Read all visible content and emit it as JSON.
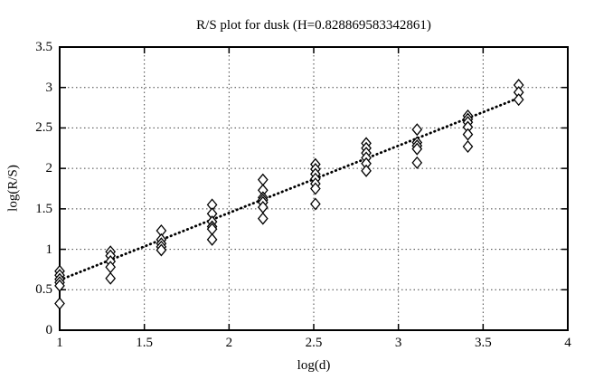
{
  "colors": {
    "background": "#ffffff",
    "foreground": "#000000",
    "grid": "#444444"
  },
  "chart_data": {
    "type": "scatter",
    "title": "R/S plot for dusk (H=0.828869583342861)",
    "xlabel": "log(d)",
    "ylabel": "log(R/S)",
    "hurst_exponent": "0.828869583342861",
    "xlim": [
      1,
      4
    ],
    "ylim": [
      0,
      3.5
    ],
    "xticks": [
      1,
      1.5,
      2,
      2.5,
      3,
      3.5,
      4
    ],
    "yticks": [
      0,
      0.5,
      1,
      1.5,
      2,
      2.5,
      3,
      3.5
    ],
    "xtick_labels": [
      "1",
      "1.5",
      "2",
      "2.5",
      "3",
      "3.5",
      "4"
    ],
    "ytick_labels": [
      "0",
      "0.5",
      "1",
      "1.5",
      "2",
      "2.5",
      "3",
      "3.5"
    ],
    "grid": "dotted",
    "legend": "none",
    "marker": "open-diamond",
    "series": [
      {
        "name": "rescaled-range-points",
        "groups": [
          {
            "x": 1.0,
            "ys": [
              0.73,
              0.68,
              0.63,
              0.59,
              0.55,
              0.33
            ]
          },
          {
            "x": 1.3,
            "ys": [
              0.97,
              0.92,
              0.85,
              0.78,
              0.64
            ]
          },
          {
            "x": 1.6,
            "ys": [
              1.23,
              1.12,
              1.07,
              1.03,
              0.99
            ]
          },
          {
            "x": 1.9,
            "ys": [
              1.55,
              1.44,
              1.34,
              1.28,
              1.25,
              1.12
            ]
          },
          {
            "x": 2.2,
            "ys": [
              1.86,
              1.73,
              1.64,
              1.61,
              1.58,
              1.52,
              1.38
            ]
          },
          {
            "x": 2.51,
            "ys": [
              2.05,
              1.99,
              1.93,
              1.87,
              1.81,
              1.75,
              1.56
            ]
          },
          {
            "x": 2.81,
            "ys": [
              2.31,
              2.25,
              2.19,
              2.13,
              2.06,
              1.97
            ]
          },
          {
            "x": 3.11,
            "ys": [
              2.48,
              2.32,
              2.28,
              2.24,
              2.07
            ]
          },
          {
            "x": 3.41,
            "ys": [
              2.65,
              2.61,
              2.57,
              2.51,
              2.42,
              2.27
            ]
          },
          {
            "x": 3.71,
            "ys": [
              3.03,
              2.94,
              2.85
            ]
          }
        ]
      }
    ],
    "fit_line": {
      "style": "dotted",
      "x1": 1.0,
      "y1": 0.62,
      "x2": 3.71,
      "y2": 2.87
    }
  }
}
